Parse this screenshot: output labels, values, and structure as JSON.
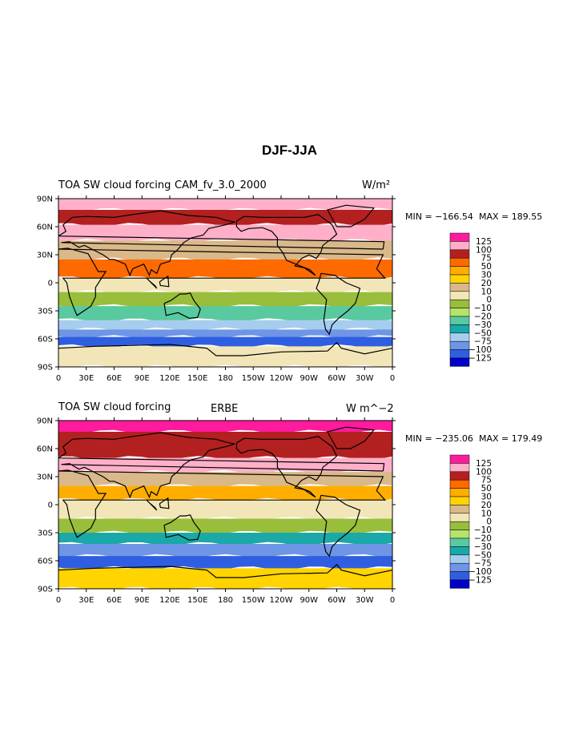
{
  "figure": {
    "title": "DJF-JJA"
  },
  "colors": {
    "levels": [
      "#8a6fd6",
      "#0000c8",
      "#2f5fe0",
      "#6e95e6",
      "#a6cdee",
      "#1aa8a8",
      "#59c9a0",
      "#b6e36a",
      "#98be3c",
      "#f2e6b8",
      "#d9b88a",
      "#ffd400",
      "#ffae00",
      "#ff6a00",
      "#b32020",
      "#ffb0c8",
      "#ff1a9e"
    ],
    "land_outline": "#000000"
  },
  "chart_data": [
    {
      "type": "heatmap",
      "title_left": "TOA SW cloud forcing",
      "title_center": "CAM_fv_3.0_2000",
      "units": "W/m²",
      "min_label": "MIN = −166.54",
      "max_label": "MAX = 189.55",
      "min": -166.54,
      "max": 189.55,
      "xticks": [
        "0",
        "30E",
        "60E",
        "90E",
        "120E",
        "150E",
        "180",
        "150W",
        "120W",
        "90W",
        "60W",
        "30W",
        "0"
      ],
      "yticks": [
        "90N",
        "60N",
        "30N",
        "0",
        "30S",
        "60S",
        "90S"
      ],
      "legend_levels": [
        "125",
        "100",
        "75",
        "50",
        "30",
        "20",
        "10",
        "0",
        "−10",
        "−20",
        "−30",
        "−50",
        "−75",
        "−100",
        "−125"
      ],
      "zonal_bands": [
        {
          "lat_from": 90,
          "lat_to": 78,
          "value": 100
        },
        {
          "lat_from": 78,
          "lat_to": 62,
          "value": 75
        },
        {
          "lat_from": 62,
          "lat_to": 45,
          "value": 100
        },
        {
          "lat_from": 45,
          "lat_to": 25,
          "value": 10
        },
        {
          "lat_from": 25,
          "lat_to": 5,
          "value": 50
        },
        {
          "lat_from": 5,
          "lat_to": -10,
          "value": 0
        },
        {
          "lat_from": -10,
          "lat_to": -25,
          "value": -10
        },
        {
          "lat_from": -25,
          "lat_to": -40,
          "value": -30
        },
        {
          "lat_from": -40,
          "lat_to": -50,
          "value": -75
        },
        {
          "lat_from": -50,
          "lat_to": -58,
          "value": -100
        },
        {
          "lat_from": -58,
          "lat_to": -68,
          "value": -125
        },
        {
          "lat_from": -68,
          "lat_to": -90,
          "value": 0
        }
      ]
    },
    {
      "type": "heatmap",
      "title_left": "TOA SW cloud forcing",
      "title_center": "ERBE",
      "units": "W m^−2",
      "min_label": "MIN = −235.06",
      "max_label": "MAX = 179.49",
      "min": -235.06,
      "max": 179.49,
      "xticks": [
        "0",
        "30E",
        "60E",
        "90E",
        "120E",
        "150E",
        "180",
        "150W",
        "120W",
        "90W",
        "60W",
        "30W",
        "0"
      ],
      "yticks": [
        "90N",
        "60N",
        "30N",
        "0",
        "30S",
        "60S",
        "90S"
      ],
      "legend_levels": [
        "125",
        "100",
        "75",
        "50",
        "30",
        "20",
        "10",
        "0",
        "−10",
        "−20",
        "−30",
        "−50",
        "−75",
        "−100",
        "−125"
      ],
      "zonal_bands": [
        {
          "lat_from": 90,
          "lat_to": 78,
          "value": 125
        },
        {
          "lat_from": 78,
          "lat_to": 50,
          "value": 75
        },
        {
          "lat_from": 50,
          "lat_to": 35,
          "value": 100
        },
        {
          "lat_from": 35,
          "lat_to": 20,
          "value": 10
        },
        {
          "lat_from": 20,
          "lat_to": 5,
          "value": 30
        },
        {
          "lat_from": 5,
          "lat_to": -15,
          "value": 0
        },
        {
          "lat_from": -15,
          "lat_to": -30,
          "value": -10
        },
        {
          "lat_from": -30,
          "lat_to": -42,
          "value": -50
        },
        {
          "lat_from": -42,
          "lat_to": -55,
          "value": -100
        },
        {
          "lat_from": -55,
          "lat_to": -68,
          "value": -125
        },
        {
          "lat_from": -68,
          "lat_to": -90,
          "value": 20
        }
      ]
    }
  ]
}
